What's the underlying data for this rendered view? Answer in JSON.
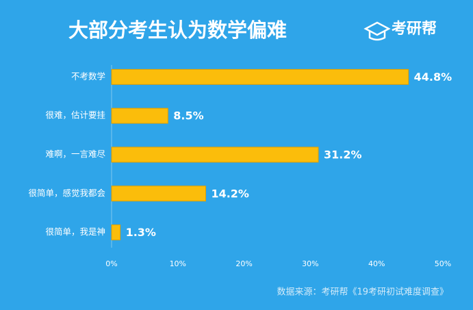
{
  "chart_data": {
    "type": "bar",
    "orientation": "horizontal",
    "title": "大部分考生认为数学偏难",
    "brand": "考研帮",
    "source": "数据来源：考研帮《19考研初试难度调查》",
    "categories": [
      "不考数学",
      "很难，估计要挂",
      "难啊，一言难尽",
      "很简单，感觉我都会",
      "很简单，我是神"
    ],
    "values": [
      44.8,
      8.5,
      31.2,
      14.2,
      1.3
    ],
    "value_labels": [
      "44.8%",
      "8.5%",
      "31.2%",
      "14.2%",
      "1.3%"
    ],
    "color": "#fbbd0b",
    "xlim": [
      0,
      50
    ],
    "xticks": [
      {
        "value": 0,
        "label": "0%"
      },
      {
        "value": 10,
        "label": "10%"
      },
      {
        "value": 20,
        "label": "20%"
      },
      {
        "value": 30,
        "label": "30%"
      },
      {
        "value": 40,
        "label": "40%"
      },
      {
        "value": 50,
        "label": "50%"
      }
    ],
    "grid": false
  }
}
